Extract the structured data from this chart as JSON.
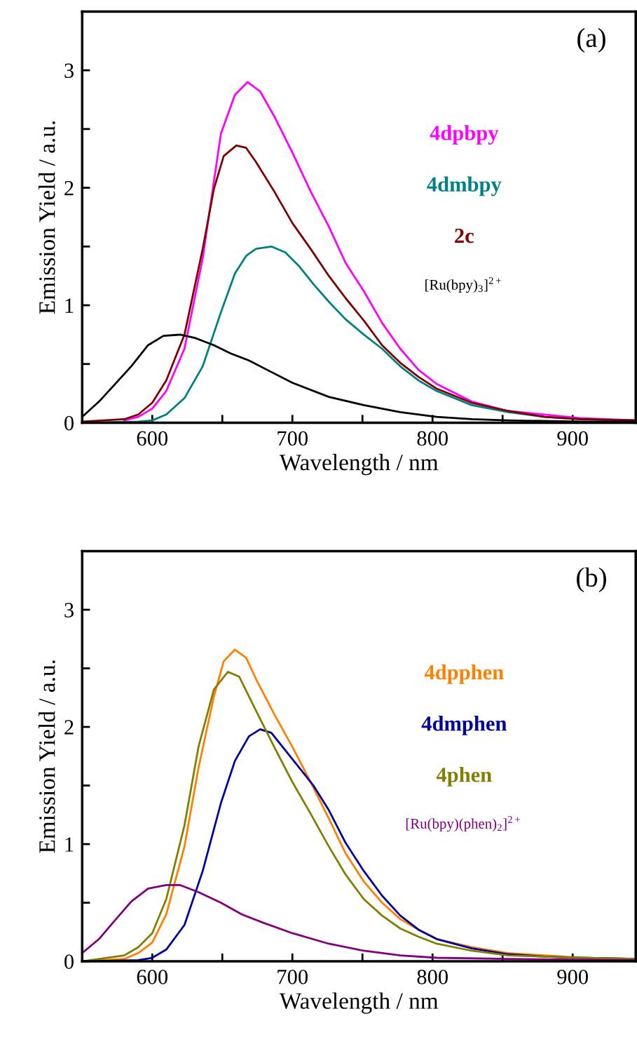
{
  "chart_data": [
    {
      "type": "line",
      "title": "(a)",
      "xlabel": "Wavelength / nm",
      "ylabel": "Emission Yield / a.u.",
      "xlim": [
        550,
        945
      ],
      "ylim": [
        0,
        3.5
      ],
      "xticks": [
        600,
        {
          "value": 650,
          "label": null
        },
        700,
        {
          "value": 750,
          "label": null
        },
        800,
        {
          "value": 850,
          "label": null
        },
        900
      ],
      "yticks": [
        0,
        {
          "value": 0.5,
          "label": null
        },
        1,
        {
          "value": 1.5,
          "label": null
        },
        2,
        {
          "value": 2.5,
          "label": null
        },
        3
      ],
      "grid": false,
      "legend": false,
      "marker": "none",
      "line_style": "solid",
      "series": [
        {
          "name": "4dpbpy",
          "color": "#ff00ff",
          "x": [
            580,
            590,
            600,
            610,
            623,
            636,
            649,
            659,
            668,
            677,
            687,
            700,
            713,
            726,
            738,
            751,
            764,
            777,
            790,
            803,
            828,
            854,
            905,
            945
          ],
          "values": [
            0.02,
            0.05,
            0.12,
            0.27,
            0.63,
            1.4,
            2.46,
            2.79,
            2.9,
            2.82,
            2.61,
            2.3,
            1.97,
            1.67,
            1.36,
            1.12,
            0.85,
            0.63,
            0.45,
            0.33,
            0.18,
            0.1,
            0.04,
            0.02
          ]
        },
        {
          "name": "4dmbpy",
          "color": "#008080",
          "x": [
            550,
            590,
            600,
            610,
            623,
            636,
            649,
            659,
            667,
            674,
            685,
            695,
            705,
            715,
            726,
            738,
            751,
            764,
            777,
            790,
            803,
            828,
            854,
            880,
            905,
            945
          ],
          "values": [
            0,
            0.01,
            0.02,
            0.07,
            0.21,
            0.48,
            0.94,
            1.27,
            1.42,
            1.48,
            1.5,
            1.45,
            1.33,
            1.18,
            1.03,
            0.88,
            0.75,
            0.63,
            0.48,
            0.36,
            0.27,
            0.15,
            0.09,
            0.05,
            0.03,
            0.02
          ]
        },
        {
          "name": "2c",
          "color": "#800000",
          "x": [
            550,
            580,
            590,
            600,
            610,
            623,
            636,
            644,
            651,
            660,
            667,
            674,
            687,
            700,
            713,
            726,
            738,
            751,
            764,
            777,
            790,
            803,
            828,
            854,
            880,
            905,
            945
          ],
          "values": [
            0.01,
            0.03,
            0.07,
            0.17,
            0.36,
            0.75,
            1.48,
            1.99,
            2.27,
            2.36,
            2.34,
            2.22,
            1.97,
            1.7,
            1.48,
            1.25,
            1.06,
            0.87,
            0.66,
            0.51,
            0.39,
            0.29,
            0.17,
            0.1,
            0.05,
            0.03,
            0.02
          ]
        },
        {
          "name": "[Ru(bpy)$_{3}$]$^{2+}$",
          "color": "#000000",
          "x": [
            550,
            562,
            572,
            585,
            597,
            608,
            620,
            631,
            644,
            656,
            669,
            682,
            700,
            726,
            751,
            777,
            803,
            828,
            854,
            905,
            945
          ],
          "values": [
            0.05,
            0.18,
            0.31,
            0.48,
            0.66,
            0.74,
            0.75,
            0.72,
            0.66,
            0.59,
            0.53,
            0.45,
            0.34,
            0.22,
            0.15,
            0.09,
            0.05,
            0.03,
            0.02,
            0.01,
            0.01
          ]
        }
      ]
    },
    {
      "type": "line",
      "title": "(b)",
      "xlabel": "Wavelength / nm",
      "ylabel": "Emission Yield / a.u.",
      "xlim": [
        550,
        945
      ],
      "ylim": [
        0,
        3.5
      ],
      "xticks": [
        600,
        {
          "value": 650,
          "label": null
        },
        700,
        {
          "value": 750,
          "label": null
        },
        800,
        {
          "value": 850,
          "label": null
        },
        900
      ],
      "yticks": [
        0,
        {
          "value": 0.5,
          "label": null
        },
        1,
        {
          "value": 1.5,
          "label": null
        },
        2,
        {
          "value": 2.5,
          "label": null
        },
        3
      ],
      "grid": false,
      "legend": false,
      "marker": "none",
      "line_style": "solid",
      "series": [
        {
          "name": "4dpphen",
          "color": "#ff8000",
          "x": [
            550,
            580,
            590,
            600,
            610,
            623,
            633,
            644,
            651,
            659,
            667,
            674,
            687,
            700,
            713,
            726,
            738,
            751,
            764,
            777,
            790,
            803,
            828,
            854,
            880,
            905,
            945
          ],
          "values": [
            0,
            0.02,
            0.07,
            0.16,
            0.4,
            0.98,
            1.65,
            2.26,
            2.56,
            2.66,
            2.59,
            2.41,
            2.11,
            1.83,
            1.53,
            1.22,
            0.92,
            0.68,
            0.5,
            0.36,
            0.27,
            0.19,
            0.12,
            0.07,
            0.05,
            0.03,
            0.02
          ]
        },
        {
          "name": "4dmphen",
          "color": "#0000a0",
          "x": [
            550,
            590,
            600,
            610,
            623,
            636,
            649,
            659,
            669,
            677,
            685,
            695,
            705,
            715,
            726,
            738,
            751,
            764,
            777,
            790,
            803,
            828,
            854,
            880,
            905,
            945
          ],
          "values": [
            0,
            0.01,
            0.03,
            0.1,
            0.31,
            0.77,
            1.35,
            1.71,
            1.92,
            1.98,
            1.95,
            1.8,
            1.65,
            1.5,
            1.29,
            1.01,
            0.77,
            0.56,
            0.39,
            0.27,
            0.19,
            0.11,
            0.06,
            0.04,
            0.03,
            0.02
          ]
        },
        {
          "name": "4phen",
          "color": "#808000",
          "x": [
            550,
            580,
            590,
            600,
            610,
            623,
            633,
            644,
            654,
            662,
            674,
            687,
            700,
            713,
            726,
            738,
            751,
            764,
            777,
            790,
            803,
            828,
            854,
            905,
            945
          ],
          "values": [
            0,
            0.05,
            0.12,
            0.24,
            0.53,
            1.16,
            1.83,
            2.32,
            2.47,
            2.43,
            2.14,
            1.83,
            1.53,
            1.26,
            0.98,
            0.74,
            0.53,
            0.39,
            0.28,
            0.21,
            0.15,
            0.09,
            0.05,
            0.03,
            0.02
          ]
        },
        {
          "name": "[Ru(bpy)(phen)$_{2}$]$^{2+}$",
          "color": "#800080",
          "x": [
            550,
            562,
            572,
            585,
            597,
            610,
            620,
            633,
            649,
            664,
            679,
            700,
            726,
            751,
            777,
            803,
            854,
            945
          ],
          "values": [
            0.07,
            0.19,
            0.33,
            0.51,
            0.62,
            0.65,
            0.65,
            0.59,
            0.5,
            0.4,
            0.33,
            0.24,
            0.15,
            0.09,
            0.05,
            0.03,
            0.02,
            0.01
          ]
        }
      ]
    }
  ]
}
